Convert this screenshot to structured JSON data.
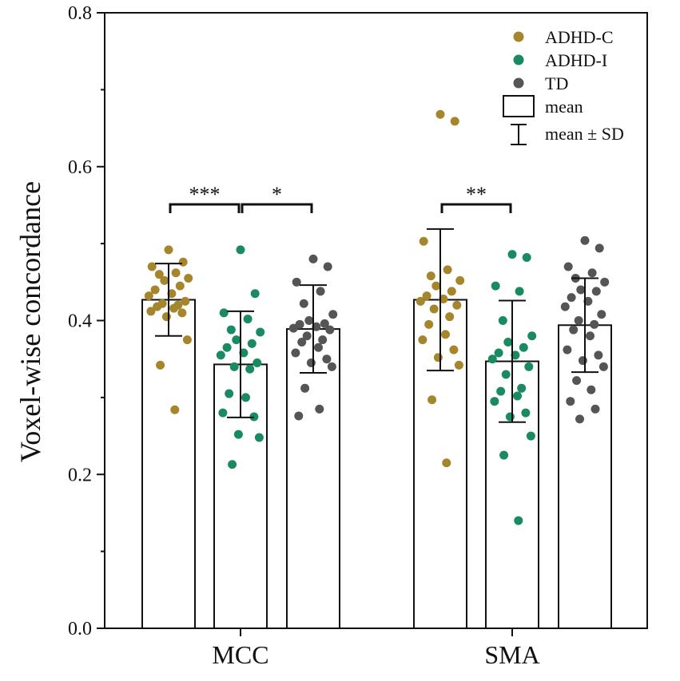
{
  "chart_data": {
    "type": "bar",
    "ylabel": "Voxel-wise concordance",
    "ylim": [
      0,
      0.8
    ],
    "yticks": [
      "0.0",
      "0.2",
      "0.4",
      "0.6",
      "0.8"
    ],
    "categories": [
      "MCC",
      "SMA"
    ],
    "colors": {
      "ADHD-C": "#a6862c",
      "ADHD-I": "#1a8a60",
      "TD": "#555555"
    },
    "series": [
      {
        "name": "ADHD-C",
        "mean": [
          0.427,
          0.427
        ],
        "sd": [
          0.047,
          0.092
        ],
        "points": [
          [
            0.492,
            0.476,
            0.47,
            0.462,
            0.46,
            0.455,
            0.452,
            0.445,
            0.44,
            0.435,
            0.432,
            0.425,
            0.422,
            0.42,
            0.418,
            0.416,
            0.412,
            0.41,
            0.405,
            0.375,
            0.342,
            0.284
          ],
          [
            0.668,
            0.659,
            0.503,
            0.466,
            0.458,
            0.452,
            0.445,
            0.438,
            0.432,
            0.428,
            0.425,
            0.42,
            0.415,
            0.405,
            0.395,
            0.382,
            0.375,
            0.362,
            0.352,
            0.342,
            0.297,
            0.215
          ]
        ]
      },
      {
        "name": "ADHD-I",
        "mean": [
          0.343,
          0.347
        ],
        "sd": [
          0.069,
          0.079
        ],
        "points": [
          [
            0.492,
            0.435,
            0.41,
            0.402,
            0.388,
            0.385,
            0.375,
            0.37,
            0.365,
            0.358,
            0.355,
            0.345,
            0.34,
            0.337,
            0.305,
            0.3,
            0.28,
            0.275,
            0.252,
            0.248,
            0.213
          ],
          [
            0.486,
            0.482,
            0.445,
            0.438,
            0.4,
            0.38,
            0.372,
            0.365,
            0.358,
            0.355,
            0.35,
            0.34,
            0.33,
            0.312,
            0.308,
            0.302,
            0.295,
            0.28,
            0.275,
            0.25,
            0.225,
            0.14
          ]
        ]
      },
      {
        "name": "TD",
        "mean": [
          0.389,
          0.394
        ],
        "sd": [
          0.057,
          0.061
        ],
        "points": [
          [
            0.48,
            0.47,
            0.45,
            0.438,
            0.422,
            0.408,
            0.4,
            0.396,
            0.395,
            0.392,
            0.39,
            0.388,
            0.38,
            0.375,
            0.372,
            0.365,
            0.358,
            0.35,
            0.345,
            0.34,
            0.312,
            0.285,
            0.276
          ],
          [
            0.504,
            0.494,
            0.47,
            0.462,
            0.455,
            0.45,
            0.44,
            0.438,
            0.43,
            0.425,
            0.418,
            0.408,
            0.4,
            0.395,
            0.388,
            0.38,
            0.362,
            0.355,
            0.348,
            0.34,
            0.322,
            0.31,
            0.295,
            0.285,
            0.272
          ]
        ]
      }
    ],
    "significance": [
      {
        "category": "MCC",
        "from": "ADHD-C",
        "to": "ADHD-I",
        "label": "***"
      },
      {
        "category": "MCC",
        "from": "ADHD-I",
        "to": "TD",
        "label": "*"
      },
      {
        "category": "SMA",
        "from": "ADHD-C",
        "to": "ADHD-I",
        "label": "**"
      }
    ],
    "legend": {
      "position": "top-right",
      "items": [
        "ADHD-C",
        "ADHD-I",
        "TD"
      ],
      "mean_label": "mean",
      "sd_label": "mean ± SD"
    }
  }
}
